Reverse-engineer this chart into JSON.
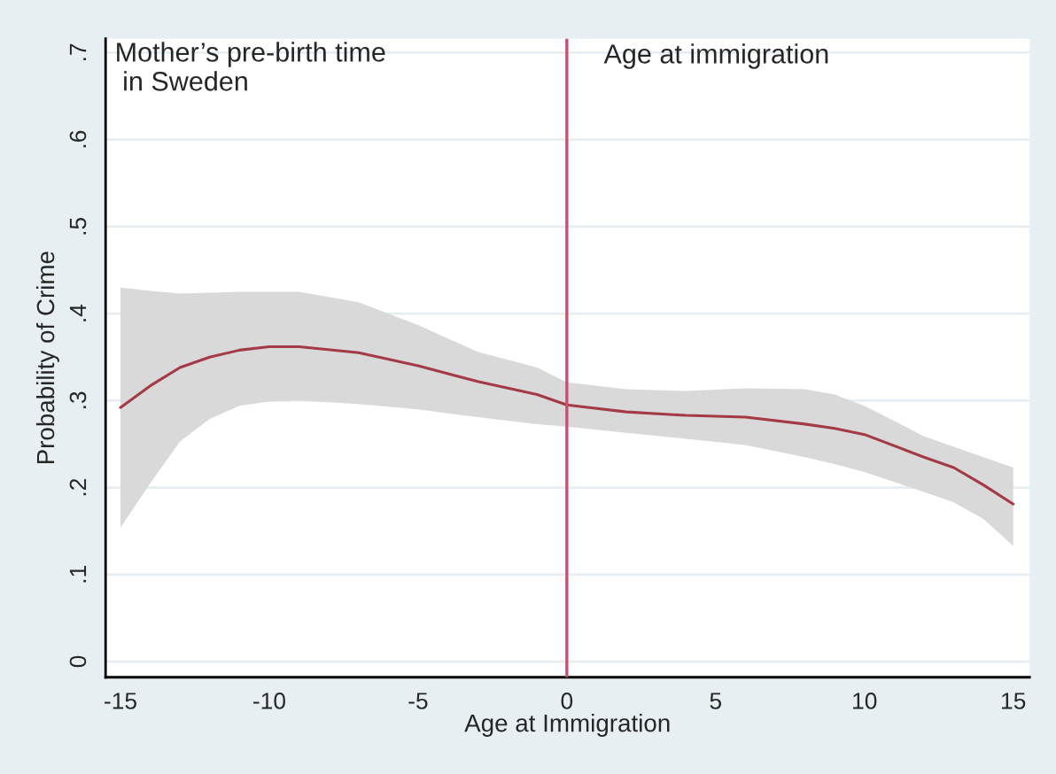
{
  "chart_data": {
    "type": "line",
    "xlabel": "Age at Immigration",
    "ylabel": "Probability of Crime",
    "xlim": [
      -15.5,
      15.55
    ],
    "ylim": [
      -0.018,
      0.716
    ],
    "xticks": [
      -15,
      -10,
      -5,
      0,
      5,
      10,
      15
    ],
    "yticks": [
      {
        "value": 0,
        "label": "0"
      },
      {
        "value": 0.1,
        "label": ".1"
      },
      {
        "value": 0.2,
        "label": ".2"
      },
      {
        "value": 0.3,
        "label": ".3"
      },
      {
        "value": 0.4,
        "label": ".4"
      },
      {
        "value": 0.5,
        "label": ".5"
      },
      {
        "value": 0.6,
        "label": ".6"
      },
      {
        "value": 0.7,
        "label": ".7"
      }
    ],
    "grid": "y",
    "legend": false,
    "series": [
      {
        "color": "#a33a46",
        "x": [
          -15,
          -14,
          -13,
          -12,
          -11,
          -10,
          -9,
          -7,
          -5,
          -3,
          -1,
          0,
          2,
          4,
          6,
          8,
          9,
          10,
          12,
          13,
          14,
          15
        ],
        "values": [
          0.292,
          0.317,
          0.338,
          0.35,
          0.358,
          0.362,
          0.362,
          0.355,
          0.34,
          0.322,
          0.307,
          0.295,
          0.287,
          0.283,
          0.281,
          0.273,
          0.268,
          0.261,
          0.235,
          0.223,
          0.203,
          0.181
        ],
        "lower": [
          0.154,
          0.205,
          0.253,
          0.279,
          0.294,
          0.299,
          0.3,
          0.296,
          0.29,
          0.281,
          0.273,
          0.27,
          0.263,
          0.256,
          0.249,
          0.235,
          0.227,
          0.218,
          0.195,
          0.183,
          0.164,
          0.133
        ],
        "upper": [
          0.43,
          0.426,
          0.423,
          0.424,
          0.425,
          0.425,
          0.425,
          0.413,
          0.387,
          0.356,
          0.338,
          0.321,
          0.313,
          0.311,
          0.314,
          0.313,
          0.307,
          0.294,
          0.259,
          0.247,
          0.235,
          0.223
        ]
      }
    ],
    "ref_lines": [
      {
        "axis": "x",
        "value": 0,
        "color": "#c8506e"
      }
    ],
    "annotations": [
      "Mother’s pre-birth time\n in Sweden",
      "Age at immigration"
    ]
  }
}
